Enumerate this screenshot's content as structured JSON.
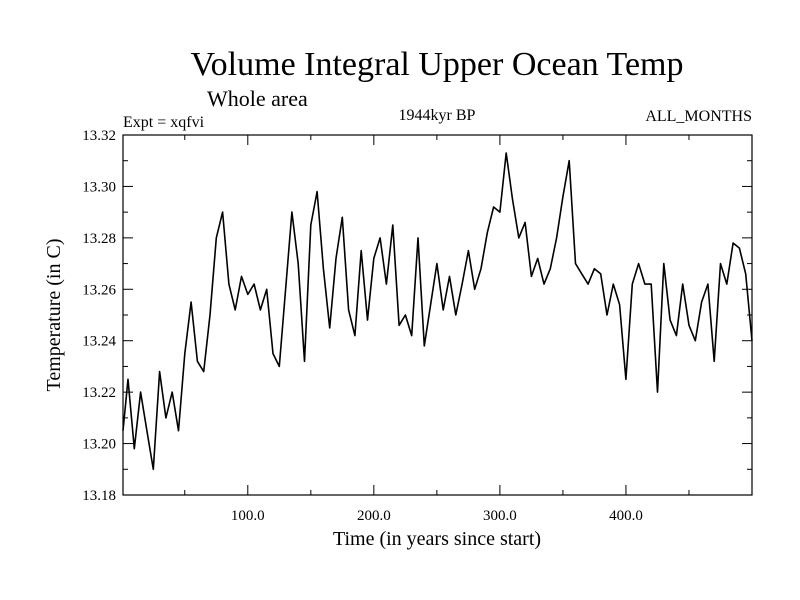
{
  "chart_data": {
    "type": "line",
    "title": "Volume Integral Upper Ocean Temp",
    "subtitle": "Whole area",
    "header_left": "Expt = xqfvi",
    "header_center": "1944kyr BP",
    "header_right": "ALL_MONTHS",
    "xlabel": "Time (in years since start)",
    "ylabel": "Temperature (in C)",
    "xlim": [
      1,
      500
    ],
    "ylim": [
      13.18,
      13.32
    ],
    "x_ticks": [
      100,
      200,
      300,
      400
    ],
    "x_tick_labels": [
      "100.0",
      "200.0",
      "300.0",
      "400.0"
    ],
    "y_ticks": [
      13.18,
      13.2,
      13.22,
      13.24,
      13.26,
      13.28,
      13.3,
      13.32
    ],
    "y_tick_labels": [
      "13.18",
      "13.20",
      "13.22",
      "13.24",
      "13.26",
      "13.28",
      "13.30",
      "13.32"
    ],
    "grid": false,
    "series": [
      {
        "name": "Temperature",
        "color": "#000000",
        "x": [
          1,
          5,
          10,
          15,
          20,
          25,
          30,
          35,
          40,
          45,
          50,
          55,
          60,
          65,
          70,
          75,
          80,
          85,
          90,
          95,
          100,
          105,
          110,
          115,
          120,
          125,
          130,
          135,
          140,
          145,
          150,
          155,
          160,
          165,
          170,
          175,
          180,
          185,
          190,
          195,
          200,
          205,
          210,
          215,
          220,
          225,
          230,
          235,
          240,
          245,
          250,
          255,
          260,
          265,
          270,
          275,
          280,
          285,
          290,
          295,
          300,
          305,
          310,
          315,
          320,
          325,
          330,
          335,
          340,
          345,
          350,
          355,
          360,
          365,
          370,
          375,
          380,
          385,
          390,
          395,
          400,
          405,
          410,
          415,
          420,
          425,
          430,
          435,
          440,
          445,
          450,
          455,
          460,
          465,
          470,
          475,
          480,
          485,
          490,
          495,
          500
        ],
        "values": [
          13.205,
          13.225,
          13.198,
          13.22,
          13.205,
          13.19,
          13.228,
          13.21,
          13.22,
          13.205,
          13.235,
          13.255,
          13.232,
          13.228,
          13.25,
          13.28,
          13.29,
          13.262,
          13.252,
          13.265,
          13.258,
          13.262,
          13.252,
          13.26,
          13.235,
          13.23,
          13.26,
          13.29,
          13.27,
          13.232,
          13.285,
          13.298,
          13.268,
          13.245,
          13.272,
          13.288,
          13.252,
          13.242,
          13.275,
          13.248,
          13.272,
          13.28,
          13.262,
          13.285,
          13.246,
          13.25,
          13.242,
          13.28,
          13.238,
          13.254,
          13.27,
          13.252,
          13.265,
          13.25,
          13.262,
          13.275,
          13.26,
          13.268,
          13.282,
          13.292,
          13.29,
          13.313,
          13.295,
          13.28,
          13.286,
          13.265,
          13.272,
          13.262,
          13.268,
          13.28,
          13.296,
          13.31,
          13.27,
          13.266,
          13.262,
          13.268,
          13.266,
          13.25,
          13.262,
          13.254,
          13.225,
          13.262,
          13.27,
          13.262,
          13.262,
          13.22,
          13.27,
          13.248,
          13.242,
          13.262,
          13.246,
          13.24,
          13.255,
          13.262,
          13.232,
          13.27,
          13.262,
          13.278,
          13.276,
          13.266,
          13.24
        ]
      }
    ]
  }
}
